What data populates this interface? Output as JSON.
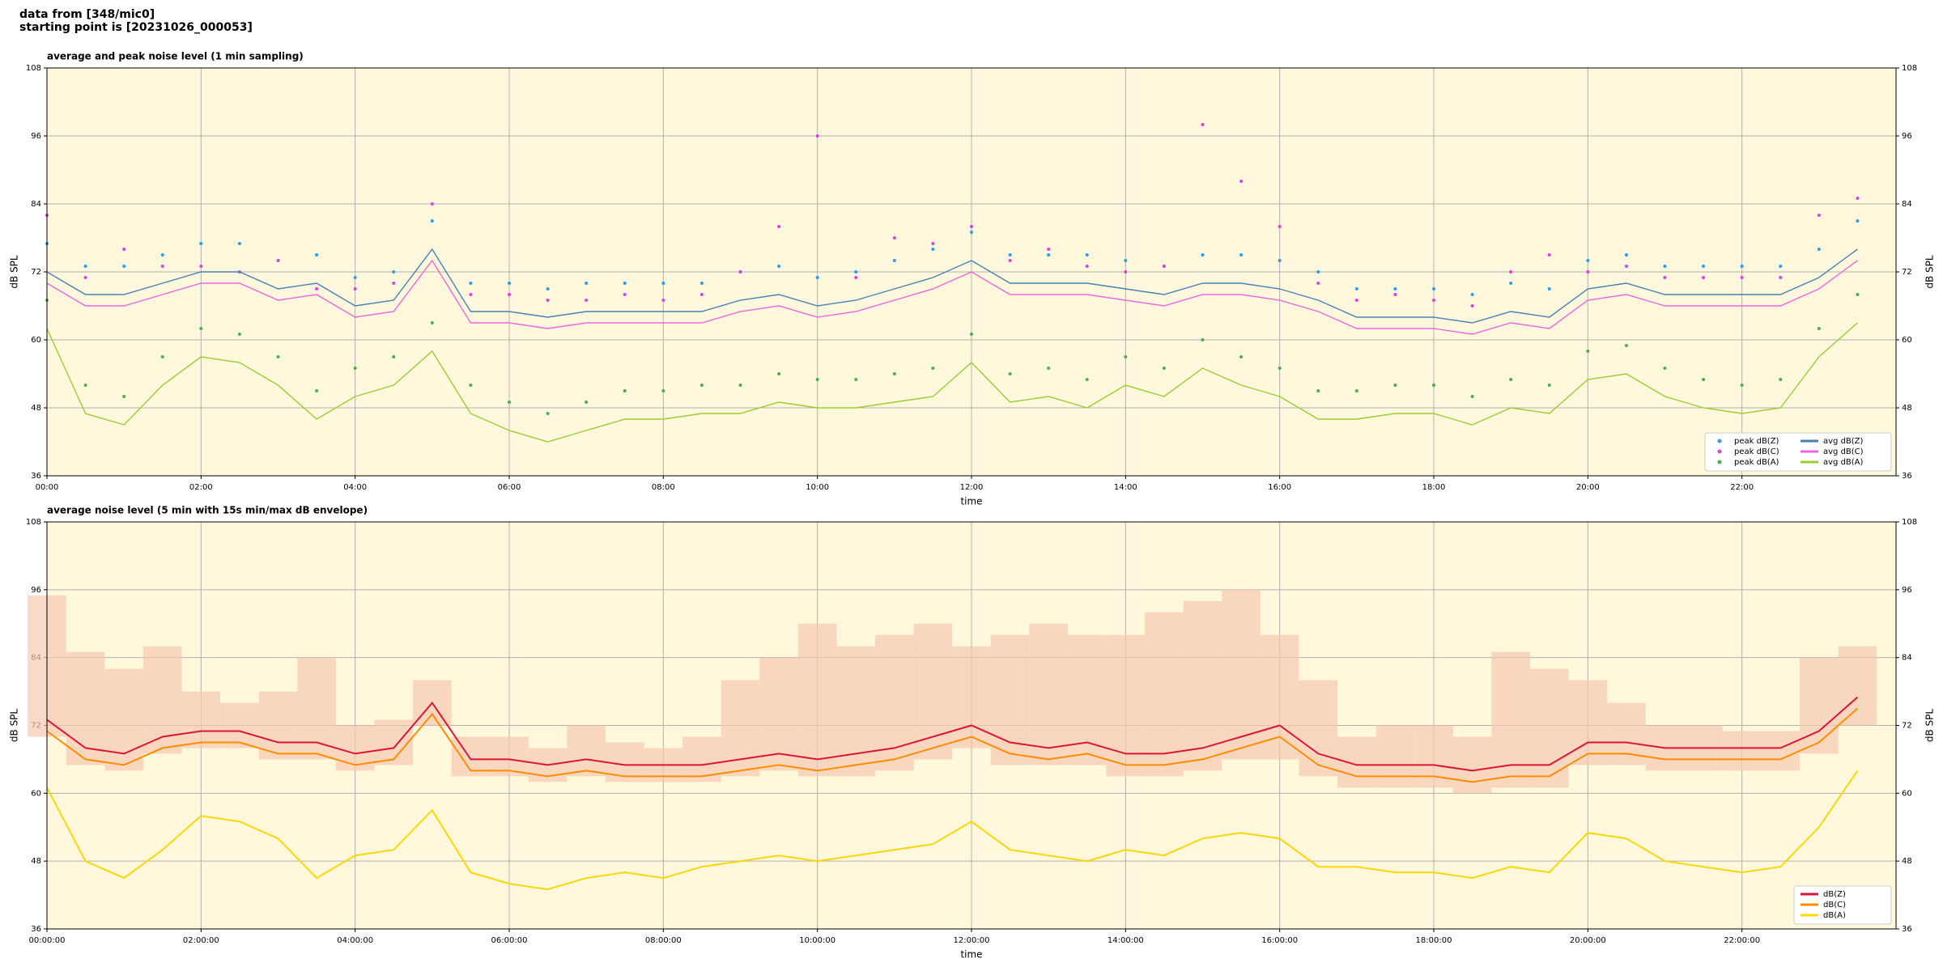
{
  "header": {
    "lines": [
      "data from [348/mic0]",
      "starting point is [20231026_000053]"
    ]
  },
  "chart_data": [
    {
      "type": "line",
      "title": "average and peak noise level (1 min sampling)",
      "xlabel": "time",
      "ylabel": "dB SPL",
      "y2label": "dB SPL",
      "x": [
        0,
        0.5,
        1,
        1.5,
        2,
        2.5,
        3,
        3.5,
        4,
        4.5,
        5,
        5.5,
        6,
        6.5,
        7,
        7.5,
        8,
        8.5,
        9,
        9.5,
        10,
        10.5,
        11,
        11.5,
        12,
        12.5,
        13,
        13.5,
        14,
        14.5,
        15,
        15.5,
        16,
        16.5,
        17,
        17.5,
        18,
        18.5,
        19,
        19.5,
        20,
        20.5,
        21,
        21.5,
        22,
        22.5,
        23,
        23.5
      ],
      "xlim": [
        0,
        24
      ],
      "xticks": [
        {
          "value": 0,
          "label": "00:00"
        },
        {
          "value": 2,
          "label": "02:00"
        },
        {
          "value": 4,
          "label": "04:00"
        },
        {
          "value": 6,
          "label": "06:00"
        },
        {
          "value": 8,
          "label": "08:00"
        },
        {
          "value": 10,
          "label": "10:00"
        },
        {
          "value": 12,
          "label": "12:00"
        },
        {
          "value": 14,
          "label": "14:00"
        },
        {
          "value": 16,
          "label": "16:00"
        },
        {
          "value": 18,
          "label": "18:00"
        },
        {
          "value": 20,
          "label": "20:00"
        },
        {
          "value": 22,
          "label": "22:00"
        }
      ],
      "ylim": [
        36,
        108
      ],
      "yticks": [
        36,
        48,
        60,
        72,
        84,
        96,
        108
      ],
      "y2lim": [
        36,
        108
      ],
      "y2ticks": [
        36,
        48,
        60,
        72,
        84,
        96,
        108
      ],
      "grid": true,
      "background": "#fff8dc",
      "legend": "lower right",
      "legend_columns": 2,
      "series": [
        {
          "name": "peak dB(Z)",
          "color": "#2a9df4",
          "style": "markers",
          "values": [
            77,
            73,
            73,
            75,
            77,
            77,
            74,
            75,
            71,
            72,
            81,
            70,
            70,
            69,
            70,
            70,
            70,
            70,
            72,
            73,
            71,
            72,
            74,
            76,
            79,
            75,
            75,
            75,
            74,
            73,
            75,
            75,
            74,
            72,
            69,
            69,
            69,
            68,
            70,
            69,
            74,
            75,
            73,
            73,
            73,
            73,
            76,
            81
          ]
        },
        {
          "name": "peak dB(C)",
          "color": "#e040e0",
          "style": "markers",
          "values": [
            82,
            71,
            76,
            73,
            73,
            72,
            74,
            69,
            69,
            70,
            84,
            68,
            68,
            67,
            67,
            68,
            67,
            68,
            72,
            80,
            96,
            71,
            78,
            77,
            80,
            74,
            76,
            73,
            72,
            73,
            98,
            88,
            80,
            70,
            67,
            68,
            67,
            66,
            72,
            75,
            72,
            73,
            71,
            71,
            71,
            71,
            82,
            85
          ]
        },
        {
          "name": "peak dB(A)",
          "color": "#4caf50",
          "style": "markers",
          "values": [
            67,
            52,
            50,
            57,
            62,
            61,
            57,
            51,
            55,
            57,
            63,
            52,
            49,
            47,
            49,
            51,
            51,
            52,
            52,
            54,
            53,
            53,
            54,
            55,
            61,
            54,
            55,
            53,
            57,
            55,
            60,
            57,
            55,
            51,
            51,
            52,
            52,
            50,
            53,
            52,
            58,
            59,
            55,
            53,
            52,
            53,
            62,
            68
          ]
        },
        {
          "name": "avg dB(Z)",
          "color": "#4682b4",
          "style": "line",
          "values": [
            72,
            68,
            68,
            70,
            72,
            72,
            69,
            70,
            66,
            67,
            76,
            65,
            65,
            64,
            65,
            65,
            65,
            65,
            67,
            68,
            66,
            67,
            69,
            71,
            74,
            70,
            70,
            70,
            69,
            68,
            70,
            70,
            69,
            67,
            64,
            64,
            64,
            63,
            65,
            64,
            69,
            70,
            68,
            68,
            68,
            68,
            71,
            76
          ]
        },
        {
          "name": "avg dB(C)",
          "color": "#ee66dd",
          "style": "line",
          "values": [
            70,
            66,
            66,
            68,
            70,
            70,
            67,
            68,
            64,
            65,
            74,
            63,
            63,
            62,
            63,
            63,
            63,
            63,
            65,
            66,
            64,
            65,
            67,
            69,
            72,
            68,
            68,
            68,
            67,
            66,
            68,
            68,
            67,
            65,
            62,
            62,
            62,
            61,
            63,
            62,
            67,
            68,
            66,
            66,
            66,
            66,
            69,
            74
          ]
        },
        {
          "name": "avg dB(A)",
          "color": "#9acd32",
          "style": "line",
          "values": [
            62,
            47,
            45,
            52,
            57,
            56,
            52,
            46,
            50,
            52,
            58,
            47,
            44,
            42,
            44,
            46,
            46,
            47,
            47,
            49,
            48,
            48,
            49,
            50,
            56,
            49,
            50,
            48,
            52,
            50,
            55,
            52,
            50,
            46,
            46,
            47,
            47,
            45,
            48,
            47,
            53,
            54,
            50,
            48,
            47,
            48,
            57,
            63
          ]
        }
      ]
    },
    {
      "type": "line",
      "title": "average noise level (5 min with 15s min/max dB envelope)",
      "xlabel": "time",
      "ylabel": "dB SPL",
      "y2label": "dB SPL",
      "x": [
        0,
        0.5,
        1,
        1.5,
        2,
        2.5,
        3,
        3.5,
        4,
        4.5,
        5,
        5.5,
        6,
        6.5,
        7,
        7.5,
        8,
        8.5,
        9,
        9.5,
        10,
        10.5,
        11,
        11.5,
        12,
        12.5,
        13,
        13.5,
        14,
        14.5,
        15,
        15.5,
        16,
        16.5,
        17,
        17.5,
        18,
        18.5,
        19,
        19.5,
        20,
        20.5,
        21,
        21.5,
        22,
        22.5,
        23,
        23.5
      ],
      "xlim": [
        0,
        24
      ],
      "xticks": [
        {
          "value": 0,
          "label": "00:00:00"
        },
        {
          "value": 2,
          "label": "02:00:00"
        },
        {
          "value": 4,
          "label": "04:00:00"
        },
        {
          "value": 6,
          "label": "06:00:00"
        },
        {
          "value": 8,
          "label": "08:00:00"
        },
        {
          "value": 10,
          "label": "10:00:00"
        },
        {
          "value": 12,
          "label": "12:00:00"
        },
        {
          "value": 14,
          "label": "14:00:00"
        },
        {
          "value": 16,
          "label": "16:00:00"
        },
        {
          "value": 18,
          "label": "18:00:00"
        },
        {
          "value": 20,
          "label": "20:00:00"
        },
        {
          "value": 22,
          "label": "22:00:00"
        }
      ],
      "ylim": [
        36,
        108
      ],
      "yticks": [
        36,
        48,
        60,
        72,
        84,
        96,
        108
      ],
      "y2lim": [
        36,
        108
      ],
      "y2ticks": [
        36,
        48,
        60,
        72,
        84,
        96,
        108
      ],
      "grid": true,
      "background": "#fff8dc",
      "legend": "lower right",
      "legend_columns": 1,
      "band": {
        "color": "#f6c9b0",
        "low": [
          70,
          65,
          64,
          67,
          68,
          68,
          66,
          66,
          64,
          65,
          72,
          63,
          63,
          62,
          63,
          62,
          62,
          62,
          63,
          64,
          63,
          63,
          64,
          66,
          68,
          65,
          65,
          65,
          63,
          63,
          64,
          66,
          66,
          63,
          61,
          61,
          61,
          60,
          61,
          61,
          65,
          65,
          64,
          64,
          64,
          64,
          67,
          72
        ],
        "high": [
          95,
          85,
          82,
          86,
          78,
          76,
          78,
          84,
          72,
          73,
          80,
          70,
          70,
          68,
          72,
          69,
          68,
          70,
          80,
          84,
          90,
          86,
          88,
          90,
          86,
          88,
          90,
          88,
          88,
          92,
          94,
          96,
          88,
          80,
          70,
          72,
          72,
          70,
          85,
          82,
          80,
          76,
          72,
          72,
          71,
          71,
          84,
          86
        ]
      },
      "series": [
        {
          "name": "dB(Z)",
          "color": "#dc143c",
          "style": "line",
          "values": [
            73,
            68,
            67,
            70,
            71,
            71,
            69,
            69,
            67,
            68,
            76,
            66,
            66,
            65,
            66,
            65,
            65,
            65,
            66,
            67,
            66,
            67,
            68,
            70,
            72,
            69,
            68,
            69,
            67,
            67,
            68,
            70,
            72,
            67,
            65,
            65,
            65,
            64,
            65,
            65,
            69,
            69,
            68,
            68,
            68,
            68,
            71,
            77
          ]
        },
        {
          "name": "dB(C)",
          "color": "#ff8c00",
          "style": "line",
          "values": [
            71,
            66,
            65,
            68,
            69,
            69,
            67,
            67,
            65,
            66,
            74,
            64,
            64,
            63,
            64,
            63,
            63,
            63,
            64,
            65,
            64,
            65,
            66,
            68,
            70,
            67,
            66,
            67,
            65,
            65,
            66,
            68,
            70,
            65,
            63,
            63,
            63,
            62,
            63,
            63,
            67,
            67,
            66,
            66,
            66,
            66,
            69,
            75
          ]
        },
        {
          "name": "dB(A)",
          "color": "#ffd700",
          "style": "line",
          "values": [
            61,
            48,
            45,
            50,
            56,
            55,
            52,
            45,
            49,
            50,
            57,
            46,
            44,
            43,
            45,
            46,
            45,
            47,
            48,
            49,
            48,
            49,
            50,
            51,
            55,
            50,
            49,
            48,
            50,
            49,
            52,
            53,
            52,
            47,
            47,
            46,
            46,
            45,
            47,
            46,
            53,
            52,
            48,
            47,
            46,
            47,
            54,
            64
          ]
        }
      ]
    }
  ]
}
